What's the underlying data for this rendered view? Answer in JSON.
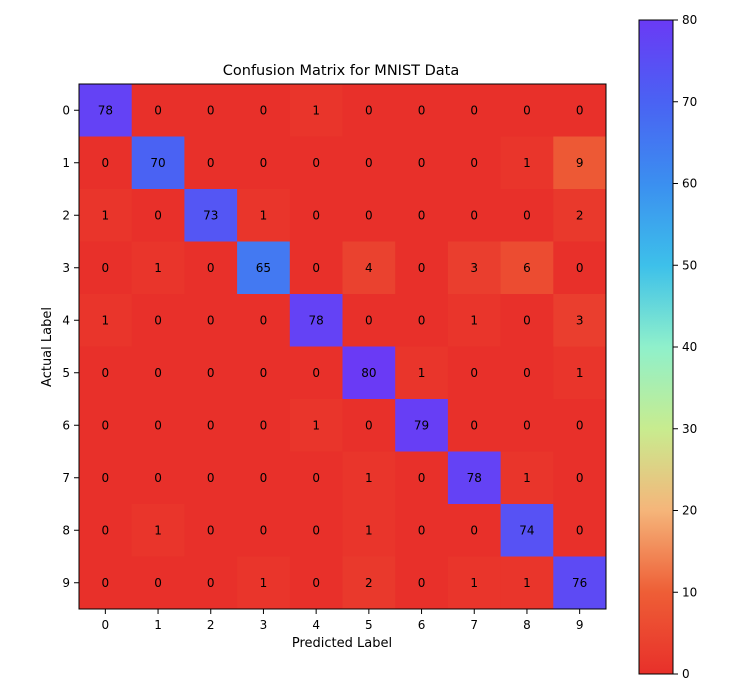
{
  "chart_data": {
    "type": "heatmap",
    "title": "Confusion Matrix for MNIST Data",
    "xlabel": "Predicted Label",
    "ylabel": "Actual Label",
    "x_categories": [
      "0",
      "1",
      "2",
      "3",
      "4",
      "5",
      "6",
      "7",
      "8",
      "9"
    ],
    "y_categories": [
      "0",
      "1",
      "2",
      "3",
      "4",
      "5",
      "6",
      "7",
      "8",
      "9"
    ],
    "values": [
      [
        78,
        0,
        0,
        0,
        1,
        0,
        0,
        0,
        0,
        0
      ],
      [
        0,
        70,
        0,
        0,
        0,
        0,
        0,
        0,
        1,
        9
      ],
      [
        1,
        0,
        73,
        1,
        0,
        0,
        0,
        0,
        0,
        2
      ],
      [
        0,
        1,
        0,
        65,
        0,
        4,
        0,
        3,
        6,
        0
      ],
      [
        1,
        0,
        0,
        0,
        78,
        0,
        0,
        1,
        0,
        3
      ],
      [
        0,
        0,
        0,
        0,
        0,
        80,
        1,
        0,
        0,
        1
      ],
      [
        0,
        0,
        0,
        0,
        1,
        0,
        79,
        0,
        0,
        0
      ],
      [
        0,
        0,
        0,
        0,
        0,
        1,
        0,
        78,
        1,
        0
      ],
      [
        0,
        1,
        0,
        0,
        0,
        1,
        0,
        0,
        74,
        0
      ],
      [
        0,
        0,
        0,
        1,
        0,
        2,
        0,
        1,
        1,
        76
      ]
    ],
    "colormap": "rainbow_r",
    "colorbar": {
      "range": [
        0,
        80
      ],
      "ticks": [
        "0",
        "10",
        "20",
        "30",
        "40",
        "50",
        "60",
        "70",
        "80"
      ]
    },
    "grid": false
  }
}
